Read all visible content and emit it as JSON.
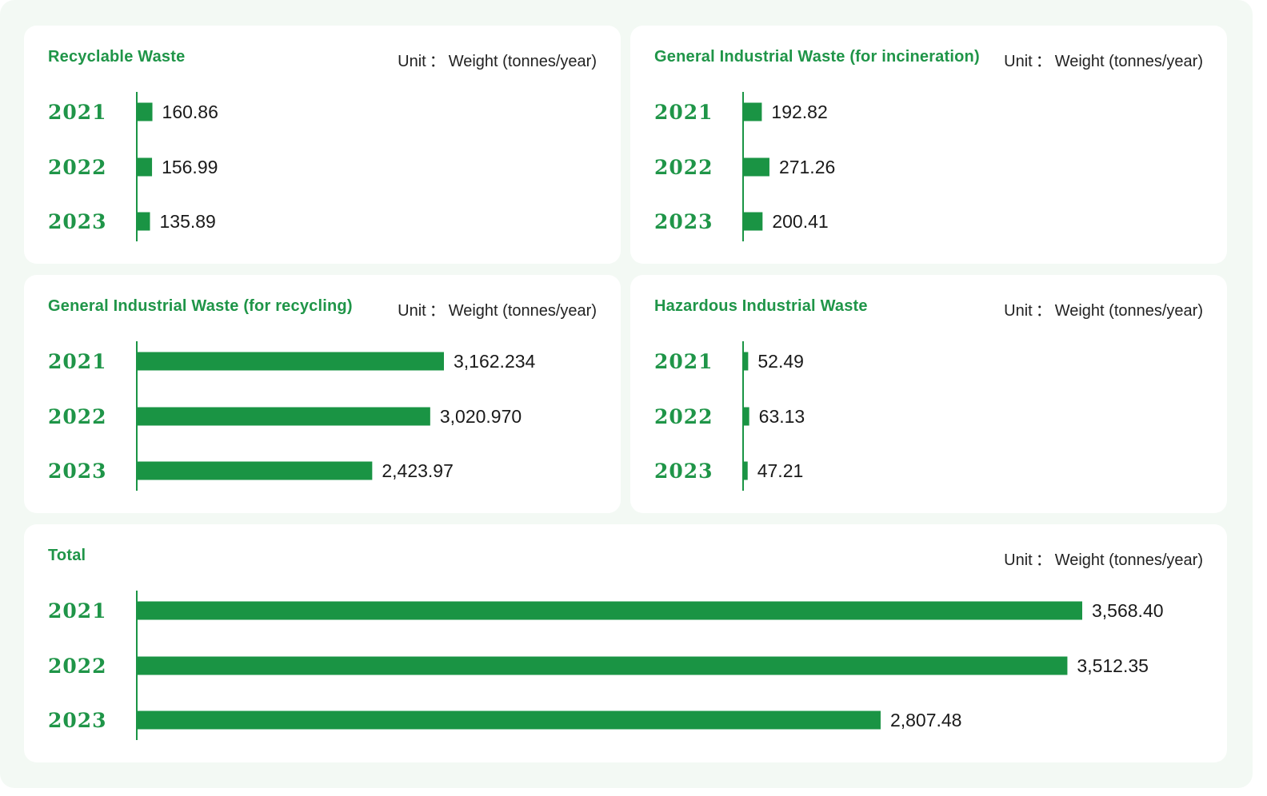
{
  "colors": {
    "accent": "#1f9548",
    "bar": "#1a9444",
    "background": "#f3f9f4"
  },
  "unit_prefix": "Unit",
  "unit_separator": "：",
  "unit_text": "Weight (tonnes/year)",
  "chart_data": [
    {
      "type": "bar",
      "orientation": "horizontal",
      "title": "Recyclable Waste",
      "categories": [
        "2021",
        "2022",
        "2023"
      ],
      "values": [
        160.86,
        156.99,
        135.89
      ],
      "value_labels": [
        "160.86",
        "156.99",
        "135.89"
      ]
    },
    {
      "type": "bar",
      "orientation": "horizontal",
      "title": "General Industrial Waste (for incineration)",
      "categories": [
        "2021",
        "2022",
        "2023"
      ],
      "values": [
        192.82,
        271.26,
        200.41
      ],
      "value_labels": [
        "192.82",
        "271.26",
        "200.41"
      ]
    },
    {
      "type": "bar",
      "orientation": "horizontal",
      "title": "General Industrial Waste (for recycling)",
      "categories": [
        "2021",
        "2022",
        "2023"
      ],
      "values": [
        3162.234,
        3020.97,
        2423.97
      ],
      "value_labels": [
        "3,162.234",
        "3,020.970",
        "2,423.97"
      ]
    },
    {
      "type": "bar",
      "orientation": "horizontal",
      "title": "Hazardous Industrial Waste",
      "categories": [
        "2021",
        "2022",
        "2023"
      ],
      "values": [
        52.49,
        63.13,
        47.21
      ],
      "value_labels": [
        "52.49",
        "63.13",
        "47.21"
      ]
    },
    {
      "type": "bar",
      "orientation": "horizontal",
      "title": "Total",
      "categories": [
        "2021",
        "2022",
        "2023"
      ],
      "values": [
        3568.4,
        3512.35,
        2807.48
      ],
      "value_labels": [
        "3,568.40",
        "3,512.35",
        "2,807.48"
      ]
    }
  ]
}
